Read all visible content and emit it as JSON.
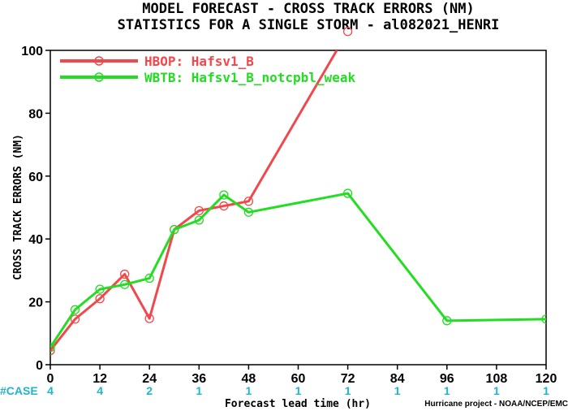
{
  "chart_data": {
    "type": "line",
    "title": "MODEL FORECAST - CROSS TRACK ERRORS (NM)",
    "subtitle": "STATISTICS FOR A SINGLE STORM - al082021_HENRI",
    "xlabel": "Forecast lead time (hr)",
    "ylabel": "CROSS TRACK ERRORS (NM)",
    "xlim": [
      0,
      120
    ],
    "ylim": [
      0,
      100
    ],
    "x_ticks": [
      "0",
      "12",
      "24",
      "36",
      "48",
      "60",
      "72",
      "84",
      "96",
      "108",
      "120"
    ],
    "y_ticks": [
      "0",
      "20",
      "40",
      "60",
      "80",
      "100"
    ],
    "grid": false,
    "legend_position": "top-left",
    "case_label": "#CASE",
    "case_counts": [
      {
        "x": 0,
        "n": "4"
      },
      {
        "x": 12,
        "n": "4"
      },
      {
        "x": 24,
        "n": "2"
      },
      {
        "x": 36,
        "n": "1"
      },
      {
        "x": 48,
        "n": "1"
      },
      {
        "x": 60,
        "n": "1"
      },
      {
        "x": 72,
        "n": "1"
      },
      {
        "x": 84,
        "n": "1"
      },
      {
        "x": 96,
        "n": "1"
      },
      {
        "x": 108,
        "n": "1"
      },
      {
        "x": 120,
        "n": "1"
      }
    ],
    "series": [
      {
        "name": "HBOP: Hafsv1_B",
        "color": "#f0484c",
        "x": [
          0,
          6,
          12,
          18,
          24,
          30,
          36,
          42,
          48,
          72
        ],
        "y": [
          4.5,
          14.5,
          21,
          28.8,
          14.7,
          43,
          49,
          50.5,
          52,
          106
        ]
      },
      {
        "name": "WBTB: Hafsv1_B_notcpbl_weak",
        "color": "#22dd22",
        "x": [
          0,
          6,
          12,
          18,
          24,
          30,
          36,
          42,
          48,
          72,
          96,
          120
        ],
        "y": [
          5.5,
          17.5,
          24,
          25.5,
          27.5,
          43,
          46,
          54,
          48.5,
          54.5,
          14,
          14.5
        ]
      }
    ],
    "footnote": "Hurricane project - NOAA/NCEP/EMC"
  }
}
